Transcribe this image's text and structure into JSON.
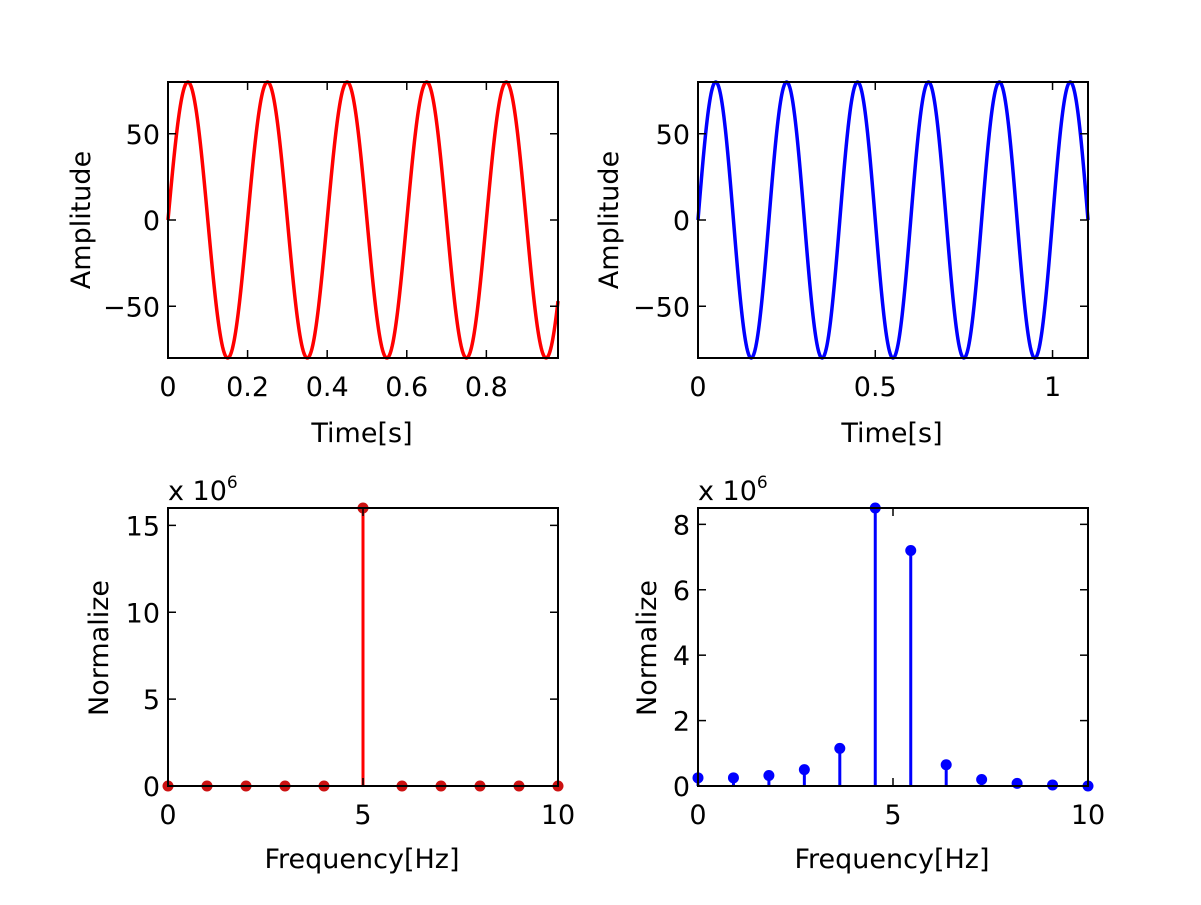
{
  "chart_data": [
    {
      "type": "line",
      "panel": "top-left",
      "xlabel": "Time[s]",
      "ylabel": "Amplitude",
      "xlim": [
        0,
        0.98
      ],
      "ylim": [
        -80,
        80
      ],
      "x_ticks": [
        "0",
        "0.2",
        "0.4",
        "0.6",
        "0.8"
      ],
      "y_ticks": [
        "50",
        "0",
        "−50"
      ],
      "series": [
        {
          "amplitude": 80,
          "frequency_hz": 5,
          "x_range": [
            0,
            0.98
          ],
          "color": "#ff0000"
        }
      ]
    },
    {
      "type": "line",
      "panel": "top-right",
      "xlabel": "Time[s]",
      "ylabel": "Amplitude",
      "xlim": [
        0,
        1.1
      ],
      "ylim": [
        -80,
        80
      ],
      "x_ticks": [
        "0",
        "0.5",
        "1"
      ],
      "y_ticks": [
        "50",
        "0",
        "−50"
      ],
      "series": [
        {
          "amplitude": 80,
          "frequency_hz": 5,
          "x_range": [
            0,
            1.1
          ],
          "color": "#0000ff"
        }
      ]
    },
    {
      "type": "stem",
      "panel": "bottom-left",
      "xlabel": "Frequency[Hz]",
      "ylabel": "Normalize",
      "xlim": [
        0,
        10
      ],
      "ylim": [
        0,
        16
      ],
      "y_multiplier": "x 10",
      "y_multiplier_exp": "6",
      "x_ticks": [
        "0",
        "5",
        "10"
      ],
      "y_ticks": [
        "0",
        "5",
        "10",
        "15"
      ],
      "series": [
        {
          "color": "#ff0000",
          "marker_color": "#cc1111",
          "x": [
            0,
            1,
            2,
            3,
            4,
            5,
            6,
            7,
            8,
            9,
            10
          ],
          "y": [
            0,
            0,
            0,
            0,
            0,
            16,
            0,
            0,
            0,
            0,
            0
          ]
        }
      ]
    },
    {
      "type": "stem",
      "panel": "bottom-right",
      "xlabel": "Frequency[Hz]",
      "ylabel": "Normalize",
      "xlim": [
        0,
        10
      ],
      "ylim": [
        0,
        8.5
      ],
      "y_multiplier": "x 10",
      "y_multiplier_exp": "6",
      "x_ticks": [
        "0",
        "5",
        "10"
      ],
      "y_ticks": [
        "0",
        "2",
        "4",
        "6",
        "8"
      ],
      "series": [
        {
          "color": "#0000ff",
          "marker_color": "#0000ff",
          "x": [
            0,
            0.909,
            1.818,
            2.727,
            3.636,
            4.545,
            5.455,
            6.364,
            7.273,
            8.182,
            9.091,
            10
          ],
          "y": [
            0.25,
            0.25,
            0.32,
            0.5,
            1.15,
            8.5,
            7.2,
            0.65,
            0.2,
            0.08,
            0.03,
            0.0
          ]
        }
      ]
    }
  ]
}
